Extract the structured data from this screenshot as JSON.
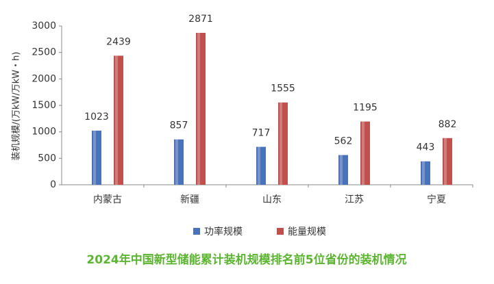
{
  "chart_data": {
    "type": "bar",
    "title": "2024年中国新型储能累计装机规模排名前5位省份的装机情况",
    "y_label": "装机规模/(万kW/万kW・h)",
    "categories": [
      "内蒙古",
      "新疆",
      "山东",
      "江苏",
      "宁夏"
    ],
    "series": [
      {
        "name": "功率规模",
        "color": "#4a72b8",
        "values": [
          1023,
          857,
          717,
          562,
          443
        ]
      },
      {
        "name": "能量规模",
        "color": "#c0504d",
        "values": [
          2439,
          2871,
          1555,
          1195,
          882
        ]
      }
    ],
    "ylim": [
      0,
      3000
    ],
    "yticks": [
      0,
      500,
      1000,
      1500,
      2000,
      2500,
      3000
    ],
    "title_color": "#5cb531"
  }
}
